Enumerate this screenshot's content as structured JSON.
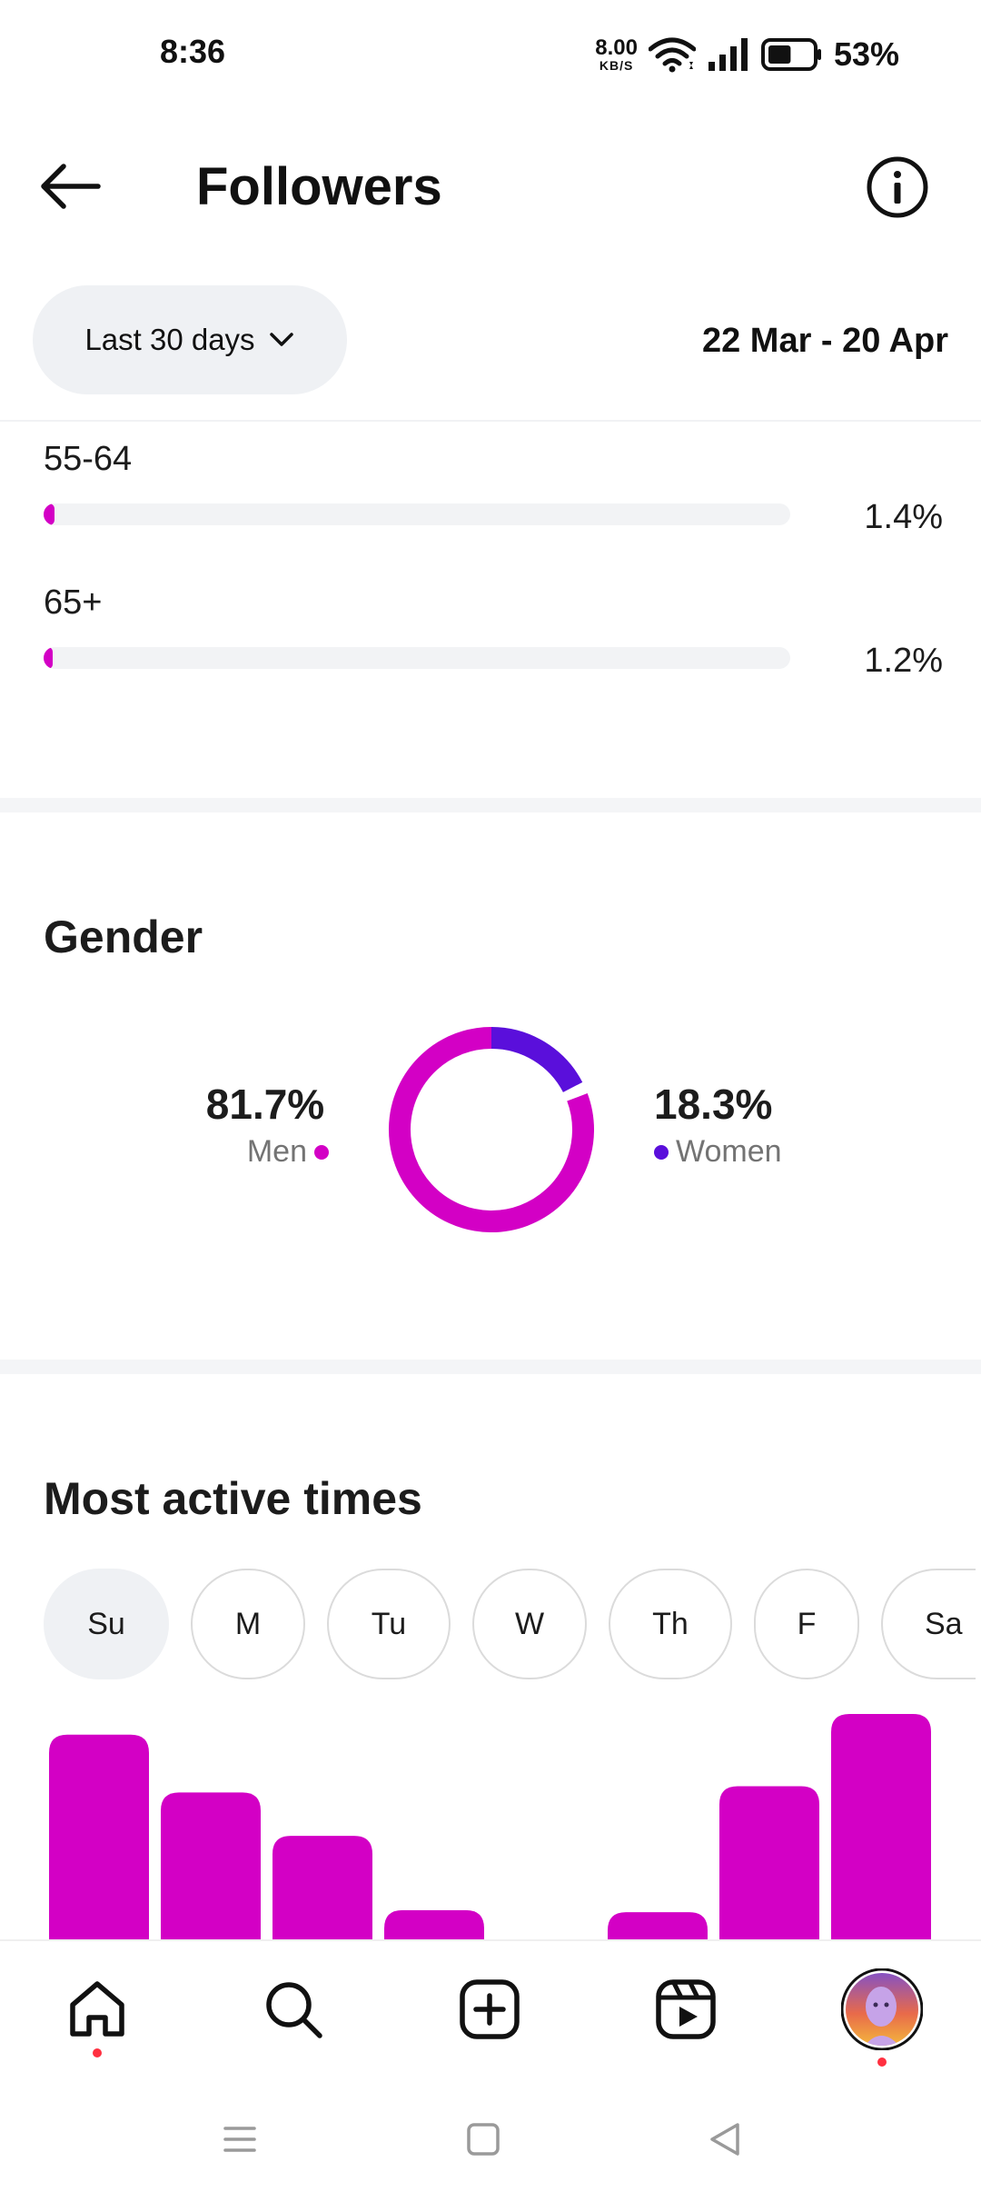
{
  "status_bar": {
    "time": "8:36",
    "net_speed_value": "8.00",
    "net_speed_unit": "KB/S",
    "battery_percent": "53%",
    "battery_level": 0.53
  },
  "header": {
    "title": "Followers",
    "back_icon": "arrow-left-icon",
    "info_icon": "info-icon"
  },
  "filter": {
    "range_label": "Last 30 days",
    "date_range": "22 Mar - 20 Apr"
  },
  "age_ranges": [
    {
      "label": "55-64",
      "value": "1.4%",
      "fraction": 0.014
    },
    {
      "label": "65+",
      "value": "1.2%",
      "fraction": 0.012
    }
  ],
  "gender": {
    "title": "Gender",
    "men": {
      "percent": "81.7%",
      "label": "Men",
      "fraction": 0.817
    },
    "women": {
      "percent": "18.3%",
      "label": "Women",
      "fraction": 0.183
    }
  },
  "active_times": {
    "title": "Most active times",
    "days": [
      "Su",
      "M",
      "Tu",
      "W",
      "Th",
      "F",
      "Sa"
    ],
    "selected_day": "Su"
  },
  "chart_data": {
    "type": "bar",
    "categories": [
      "",
      "",
      "",
      "",
      "",
      "",
      "",
      ""
    ],
    "values": [
      100,
      72,
      51,
      15,
      0,
      14,
      75,
      110
    ],
    "title": "",
    "xlabel": "",
    "ylabel": "",
    "ylim": [
      0,
      110
    ],
    "grid": false
  },
  "bottom_nav": [
    "home-icon",
    "search-icon",
    "create-icon",
    "reels-icon",
    "profile-avatar"
  ],
  "system_nav": [
    "menu-icon",
    "home-square-icon",
    "back-triangle-icon"
  ],
  "colors": {
    "accent_magenta": "#d300c5",
    "accent_purple": "#5a0fdb",
    "notification_red": "#ff3040",
    "pill_bg": "#eff1f4"
  }
}
